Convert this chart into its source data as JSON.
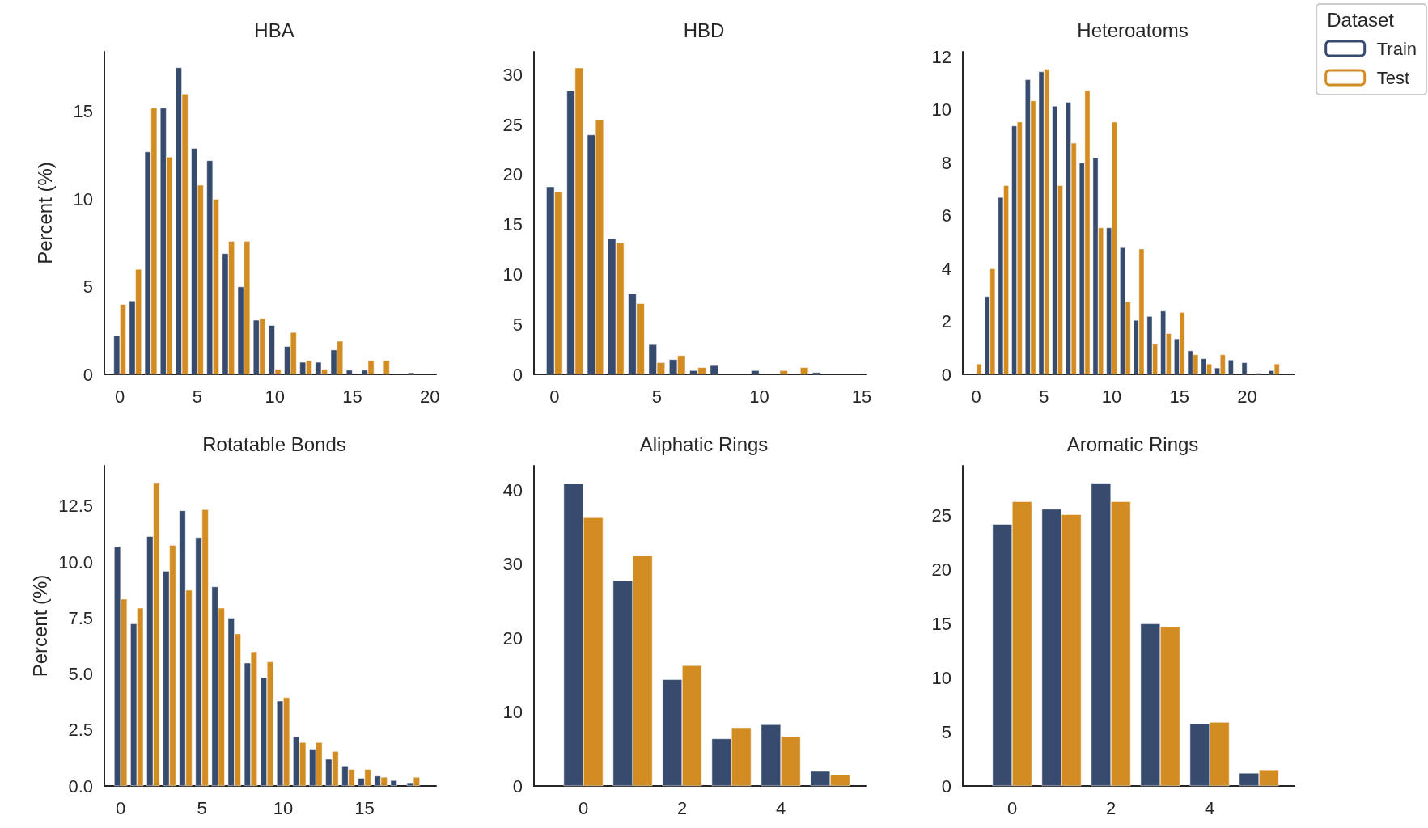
{
  "chart_data": [
    {
      "type": "bar",
      "title": "HBA",
      "ylabel": "Percent (%)",
      "x": [
        0,
        1,
        2,
        3,
        4,
        5,
        6,
        7,
        8,
        9,
        10,
        11,
        12,
        13,
        14,
        15,
        16,
        17,
        18,
        19
      ],
      "xlim": [
        -1,
        20.4
      ],
      "xticks": [
        0,
        5,
        10,
        15,
        20
      ],
      "ylim": [
        0,
        18.4
      ],
      "yticks": [
        0,
        5,
        10,
        15
      ],
      "grid": false,
      "series": [
        {
          "color": "#364b6e",
          "values": [
            2.2,
            4.2,
            12.7,
            15.2,
            17.5,
            12.9,
            12.2,
            6.9,
            5.0,
            3.1,
            2.8,
            1.6,
            0.7,
            0.7,
            1.4,
            0.25,
            0.25,
            null,
            null,
            0.1
          ]
        },
        {
          "color": "#d38c22",
          "values": [
            4.0,
            6.0,
            15.2,
            12.4,
            16.0,
            10.8,
            10.0,
            7.6,
            7.6,
            3.2,
            0.3,
            2.4,
            0.8,
            0.3,
            1.9,
            null,
            0.8,
            0.8,
            null,
            null
          ]
        }
      ]
    },
    {
      "type": "bar",
      "title": "HBD",
      "x": [
        0,
        1,
        2,
        3,
        4,
        5,
        6,
        7,
        8,
        9,
        10,
        11,
        12,
        13
      ],
      "xlim": [
        -1,
        15.2
      ],
      "xticks": [
        0,
        5,
        10,
        15
      ],
      "ylim": [
        0,
        32.3
      ],
      "yticks": [
        0,
        5,
        10,
        15,
        20,
        25,
        30
      ],
      "grid": false,
      "series": [
        {
          "color": "#364b6e",
          "values": [
            18.8,
            28.4,
            24.0,
            13.6,
            8.1,
            3.0,
            1.5,
            0.4,
            0.9,
            null,
            0.4,
            null,
            null,
            0.2
          ]
        },
        {
          "color": "#d38c22",
          "values": [
            18.3,
            30.7,
            25.5,
            13.2,
            7.1,
            1.2,
            1.9,
            0.7,
            null,
            null,
            null,
            0.4,
            0.7,
            null
          ]
        }
      ]
    },
    {
      "type": "bar",
      "title": "Heteroatoms",
      "legend_title": "Dataset",
      "legend": "top right",
      "x": [
        0,
        1,
        2,
        3,
        4,
        5,
        6,
        7,
        8,
        9,
        10,
        11,
        12,
        13,
        14,
        15,
        16,
        17,
        18,
        19,
        20,
        21,
        22
      ],
      "xlim": [
        -1,
        23.5
      ],
      "xticks": [
        0,
        5,
        10,
        15,
        20
      ],
      "ylim": [
        0,
        12.2
      ],
      "yticks": [
        0,
        2,
        4,
        6,
        8,
        10,
        12
      ],
      "grid": false,
      "series": [
        {
          "name": "Train",
          "color": "#364b6e",
          "values": [
            null,
            2.95,
            6.7,
            9.4,
            11.15,
            11.45,
            10.15,
            10.3,
            8.0,
            8.2,
            5.55,
            4.8,
            2.05,
            2.2,
            2.4,
            1.35,
            0.9,
            0.6,
            0.25,
            0.55,
            0.45,
            0.05,
            0.15
          ]
        },
        {
          "name": "Test",
          "color": "#d38c22",
          "values": [
            0.4,
            4.0,
            7.15,
            9.55,
            10.35,
            11.55,
            7.15,
            8.75,
            10.75,
            5.55,
            9.55,
            2.75,
            4.75,
            1.15,
            1.55,
            2.35,
            0.75,
            0.4,
            0.75,
            null,
            null,
            null,
            0.4
          ]
        }
      ]
    },
    {
      "type": "bar",
      "title": "Rotatable Bonds",
      "ylabel": "Percent (%)",
      "x": [
        0,
        1,
        2,
        3,
        4,
        5,
        6,
        7,
        8,
        9,
        10,
        11,
        12,
        13,
        14,
        15,
        16,
        17,
        18
      ],
      "xlim": [
        -1,
        19.4
      ],
      "xticks": [
        0,
        5,
        10,
        15
      ],
      "ylim": [
        0,
        14.3
      ],
      "yticks": [
        {
          "value": 0,
          "label": "0.0"
        },
        2.5,
        {
          "value": 5,
          "label": "5.0"
        },
        7.5,
        {
          "value": 10,
          "label": "10.0"
        },
        12.5
      ],
      "grid": false,
      "series": [
        {
          "color": "#364b6e",
          "values": [
            10.7,
            7.25,
            11.15,
            9.6,
            12.3,
            11.1,
            8.9,
            7.5,
            5.5,
            4.85,
            3.8,
            2.2,
            1.65,
            1.2,
            0.9,
            0.35,
            0.45,
            0.25,
            0.15
          ]
        },
        {
          "color": "#d38c22",
          "values": [
            8.35,
            7.95,
            13.55,
            10.75,
            8.75,
            12.35,
            7.95,
            6.8,
            6.0,
            5.55,
            3.95,
            1.95,
            1.95,
            1.55,
            0.75,
            0.75,
            0.4,
            null,
            0.4
          ]
        }
      ]
    },
    {
      "type": "bar",
      "title": "Aliphatic Rings",
      "x": [
        0,
        1,
        2,
        3,
        4,
        5
      ],
      "xlim": [
        -1,
        5.72
      ],
      "xticks": [
        0,
        2,
        4
      ],
      "ylim": [
        0,
        43.3
      ],
      "yticks": [
        0,
        10,
        20,
        30,
        40
      ],
      "grid": false,
      "series": [
        {
          "color": "#364b6e",
          "values": [
            40.9,
            27.8,
            14.4,
            6.4,
            8.3,
            2.0
          ]
        },
        {
          "color": "#d38c22",
          "values": [
            36.3,
            31.2,
            16.3,
            7.9,
            6.7,
            1.5
          ]
        }
      ]
    },
    {
      "type": "bar",
      "title": "Aromatic Rings",
      "x": [
        0,
        1,
        2,
        3,
        4,
        5
      ],
      "xlim": [
        -1,
        5.72
      ],
      "xticks": [
        0,
        2,
        4
      ],
      "ylim": [
        0,
        29.6
      ],
      "yticks": [
        0,
        5,
        10,
        15,
        20,
        25
      ],
      "grid": false,
      "series": [
        {
          "color": "#364b6e",
          "values": [
            24.2,
            25.6,
            28.0,
            15.0,
            5.75,
            1.2
          ]
        },
        {
          "color": "#d38c22",
          "values": [
            26.3,
            25.1,
            26.3,
            14.7,
            5.9,
            1.5
          ]
        }
      ]
    }
  ]
}
